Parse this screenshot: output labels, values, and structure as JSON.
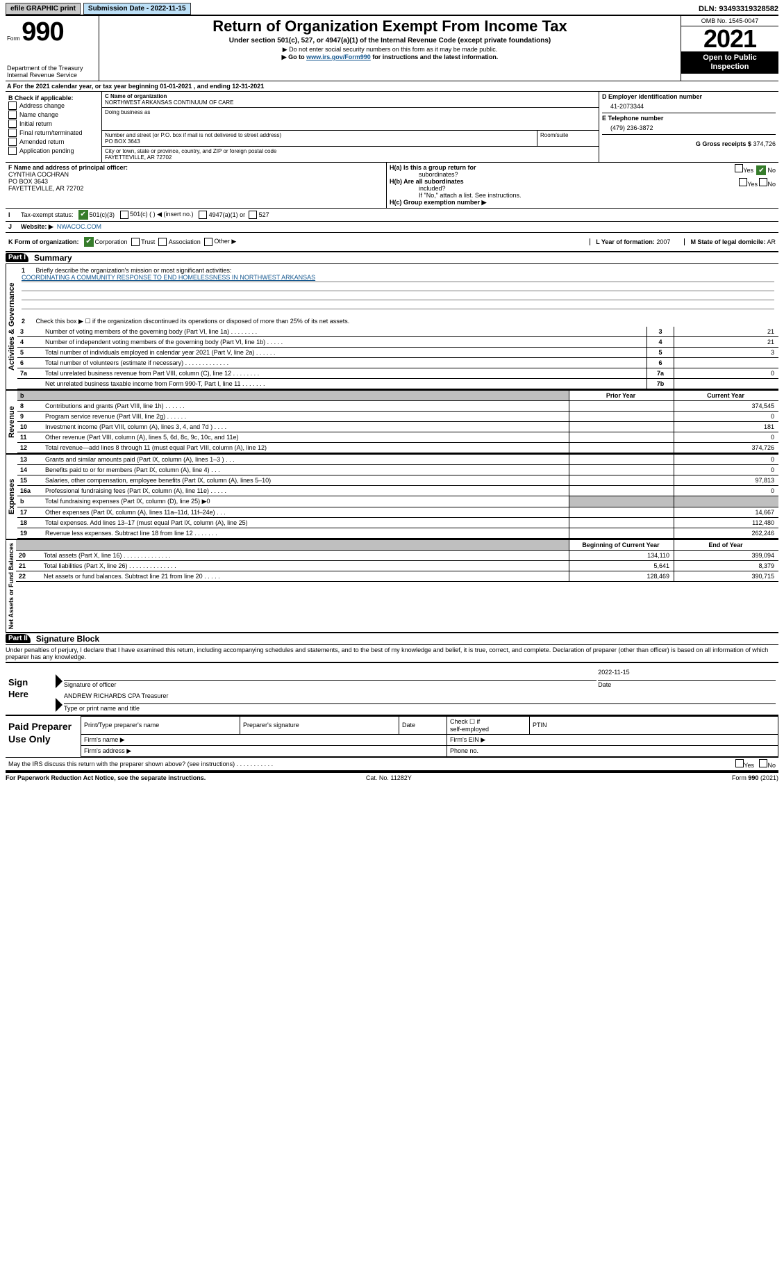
{
  "topbar": {
    "efile": "efile GRAPHIC print",
    "subdate_label": "Submission Date - 2022-11-15",
    "dln": "DLN: 93493319328582"
  },
  "header": {
    "form_label": "Form",
    "form_num": "990",
    "dept": "Department of the Treasury",
    "irs": "Internal Revenue Service",
    "title": "Return of Organization Exempt From Income Tax",
    "subtitle": "Under section 501(c), 527, or 4947(a)(1) of the Internal Revenue Code (except private foundations)",
    "note1": "▶ Do not enter social security numbers on this form as it may be made public.",
    "note2_pre": "▶ Go to ",
    "note2_link": "www.irs.gov/Form990",
    "note2_post": " for instructions and the latest information.",
    "omb": "OMB No. 1545-0047",
    "year": "2021",
    "insp1": "Open to Public",
    "insp2": "Inspection"
  },
  "rowA": {
    "text": "A For the 2021 calendar year, or tax year beginning 01-01-2021   , and ending 12-31-2021"
  },
  "colB": {
    "header": "B Check if applicable:",
    "items": [
      "Address change",
      "Name change",
      "Initial return",
      "Final return/terminated",
      "Amended return",
      "Application pending"
    ]
  },
  "colC": {
    "name_lbl": "C Name of organization",
    "name": "NORTHWEST ARKANSAS CONTINUUM OF CARE",
    "dba_lbl": "Doing business as",
    "dba": "",
    "street_lbl": "Number and street (or P.O. box if mail is not delivered to street address)",
    "street": "PO BOX 3643",
    "suite_lbl": "Room/suite",
    "suite": "",
    "city_lbl": "City or town, state or province, country, and ZIP or foreign postal code",
    "city": "FAYETTEVILLE, AR  72702"
  },
  "colD": {
    "d_lbl": "D Employer identification number",
    "ein": "41-2073344",
    "e_lbl": "E Telephone number",
    "phone": "(479) 236-3872",
    "g_lbl": "G Gross receipts $",
    "g_val": "374,726"
  },
  "officer": {
    "f_lbl": "F Name and address of principal officer:",
    "name": "CYNTHIA COCHRAN",
    "addr1": "PO BOX 3643",
    "addr2": "FAYETTEVILLE, AR  72702",
    "ha_lbl": "H(a)  Is this a group return for",
    "ha_lb2": "subordinates?",
    "hb_lbl": "H(b)  Are all subordinates",
    "hb_lb2": "included?",
    "hb_note": "If \"No,\" attach a list. See instructions.",
    "hc_lbl": "H(c)  Group exemption number ▶",
    "yes": "Yes",
    "no": "No"
  },
  "lineI": {
    "lbl": "Tax-exempt status:",
    "o1": "501(c)(3)",
    "o2": "501(c) (  ) ◀ (insert no.)",
    "o3": "4947(a)(1) or",
    "o4": "527"
  },
  "lineJ": {
    "lbl": "Website: ▶",
    "val": "NWACOC.COM"
  },
  "lineK": {
    "lbl": "K Form of organization:",
    "o1": "Corporation",
    "o2": "Trust",
    "o3": "Association",
    "o4": "Other ▶",
    "l_lbl": "L Year of formation:",
    "l_val": "2007",
    "m_lbl": "M State of legal domicile:",
    "m_val": "AR"
  },
  "part1": {
    "hdr": "Part I",
    "title": "Summary",
    "sec_gov": "Activities & Governance",
    "sec_rev": "Revenue",
    "sec_exp": "Expenses",
    "sec_net": "Net Assets or Fund Balances",
    "l1_lbl": "Briefly describe the organization's mission or most significant activities:",
    "l1_txt": "COORDINATING A COMMUNITY RESPONSE TO END HOMELESSNESS IN NORTHWEST ARKANSAS",
    "l2": "Check this box ▶ ☐  if the organization discontinued its operations or disposed of more than 25% of its net assets.",
    "rows_gov": [
      {
        "n": "3",
        "t": "Number of voting members of the governing body (Part VI, line 1a)   .   .   .   .   .   .   .   .",
        "c": "3",
        "v": "21"
      },
      {
        "n": "4",
        "t": "Number of independent voting members of the governing body (Part VI, line 1b)  .   .   .   .   .",
        "c": "4",
        "v": "21"
      },
      {
        "n": "5",
        "t": "Total number of individuals employed in calendar year 2021 (Part V, line 2a)  .   .   .   .   .   .",
        "c": "5",
        "v": "3"
      },
      {
        "n": "6",
        "t": "Total number of volunteers (estimate if necessary)   .   .   .   .   .   .   .   .   .   .   .   .   .",
        "c": "6",
        "v": ""
      },
      {
        "n": "7a",
        "t": "Total unrelated business revenue from Part VIII, column (C), line 12  .   .   .   .   .   .   .   .",
        "c": "7a",
        "v": "0"
      },
      {
        "n": "",
        "t": "Net unrelated business taxable income from Form 990-T, Part I, line 11  .   .   .   .   .   .   .",
        "c": "7b",
        "v": ""
      }
    ],
    "hdr_py": "Prior Year",
    "hdr_cy": "Current Year",
    "rows_rev": [
      {
        "n": "8",
        "t": "Contributions and grants (Part VIII, line 1h)   .   .   .   .   .   .",
        "py": "",
        "cy": "374,545"
      },
      {
        "n": "9",
        "t": "Program service revenue (Part VIII, line 2g)   .   .   .   .   .   .",
        "py": "",
        "cy": "0"
      },
      {
        "n": "10",
        "t": "Investment income (Part VIII, column (A), lines 3, 4, and 7d )   .   .   .   .",
        "py": "",
        "cy": "181"
      },
      {
        "n": "11",
        "t": "Other revenue (Part VIII, column (A), lines 5, 6d, 8c, 9c, 10c, and 11e)",
        "py": "",
        "cy": "0"
      },
      {
        "n": "12",
        "t": "Total revenue—add lines 8 through 11 (must equal Part VIII, column (A), line 12)",
        "py": "",
        "cy": "374,726"
      }
    ],
    "rows_exp": [
      {
        "n": "13",
        "t": "Grants and similar amounts paid (Part IX, column (A), lines 1–3 )   .   .   .",
        "py": "",
        "cy": "0"
      },
      {
        "n": "14",
        "t": "Benefits paid to or for members (Part IX, column (A), line 4)   .   .   .",
        "py": "",
        "cy": "0"
      },
      {
        "n": "15",
        "t": "Salaries, other compensation, employee benefits (Part IX, column (A), lines 5–10)",
        "py": "",
        "cy": "97,813"
      },
      {
        "n": "16a",
        "t": "Professional fundraising fees (Part IX, column (A), line 11e)   .   .   .   .   .",
        "py": "",
        "cy": "0"
      },
      {
        "n": "b",
        "t": "Total fundraising expenses (Part IX, column (D), line 25) ▶0",
        "py": "GRAY",
        "cy": "GRAY"
      },
      {
        "n": "17",
        "t": "Other expenses (Part IX, column (A), lines 11a–11d, 11f–24e)   .   .   .",
        "py": "",
        "cy": "14,667"
      },
      {
        "n": "18",
        "t": "Total expenses. Add lines 13–17 (must equal Part IX, column (A), line 25)",
        "py": "",
        "cy": "112,480"
      },
      {
        "n": "19",
        "t": "Revenue less expenses. Subtract line 18 from line 12   .   .   .   .   .   .   .",
        "py": "",
        "cy": "262,246"
      }
    ],
    "hdr_boy": "Beginning of Current Year",
    "hdr_eoy": "End of Year",
    "rows_net": [
      {
        "n": "20",
        "t": "Total assets (Part X, line 16)   .   .   .   .   .   .   .   .   .   .   .   .   .   .",
        "py": "134,110",
        "cy": "399,094"
      },
      {
        "n": "21",
        "t": "Total liabilities (Part X, line 26)   .   .   .   .   .   .   .   .   .   .   .   .   .   .",
        "py": "5,641",
        "cy": "8,379"
      },
      {
        "n": "22",
        "t": "Net assets or fund balances. Subtract line 21 from line 20   .   .   .   .   .",
        "py": "128,469",
        "cy": "390,715"
      }
    ]
  },
  "part2": {
    "hdr": "Part II",
    "title": "Signature Block",
    "decl": "Under penalties of perjury, I declare that I have examined this return, including accompanying schedules and statements, and to the best of my knowledge and belief, it is true, correct, and complete. Declaration of preparer (other than officer) is based on all information of which preparer has any knowledge.",
    "sign_here": "Sign Here",
    "sig_officer": "Signature of officer",
    "sig_date_lbl": "Date",
    "sig_date": "2022-11-15",
    "sig_name": "ANDREW RICHARDS CPA Treasurer",
    "sig_name_lbl": "Type or print name and title",
    "paid": "Paid Preparer Use Only",
    "p_col1": "Print/Type preparer's name",
    "p_col2": "Preparer's signature",
    "p_col3": "Date",
    "p_col4a": "Check ☐ if",
    "p_col4b": "self-employed",
    "p_col5": "PTIN",
    "p_firm_name": "Firm's name   ▶",
    "p_firm_ein": "Firm's EIN ▶",
    "p_firm_addr": "Firm's address ▶",
    "p_phone": "Phone no.",
    "may_irs": "May the IRS discuss this return with the preparer shown above? (see instructions)   .   .   .   .   .   .   .   .   .   .   .",
    "yes": "Yes",
    "no": "No"
  },
  "footer": {
    "left": "For Paperwork Reduction Act Notice, see the separate instructions.",
    "mid": "Cat. No. 11282Y",
    "right": "Form 990 (2021)"
  }
}
